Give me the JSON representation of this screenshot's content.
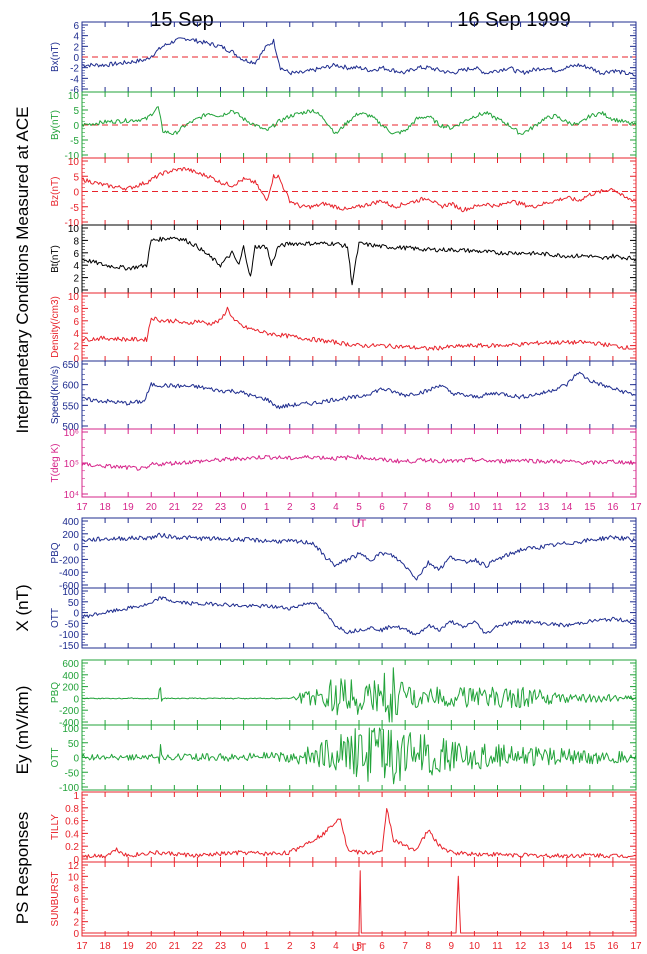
{
  "header": {
    "date_left": "15 Sep",
    "date_right": "16 Sep 1999"
  },
  "groups": {
    "ace": "Interplanetary Conditions Measured at ACE",
    "x": "X (nT)",
    "ey": "Ey (mV/km)",
    "ps": "PS Responses"
  },
  "colors": {
    "blue": "#1f2d8f",
    "green": "#22a33a",
    "red": "#e8232b",
    "black": "#000000",
    "magenta": "#d6248a"
  },
  "chart_data": [
    {
      "type": "line",
      "id": "bx",
      "ylabel": "Bx(nT)",
      "ylim": [
        -6,
        6
      ],
      "yticks": [
        -6,
        -4,
        -2,
        0,
        2,
        4,
        6
      ],
      "color": "blue",
      "zero_line": true,
      "x": [
        17,
        18,
        19,
        19.8,
        20.5,
        21,
        21.5,
        22,
        22.5,
        23,
        23.5,
        24,
        24.5,
        25,
        25.3,
        25.6,
        26,
        26.5,
        27,
        27.5,
        28,
        28.5,
        29,
        29.5,
        30,
        30.5,
        31,
        31.5,
        32,
        32.5,
        33,
        33.5,
        34,
        34.5,
        35,
        35.5,
        36,
        36.5,
        37,
        37.5,
        38,
        38.5,
        39,
        39.5,
        40,
        40.5,
        41
      ],
      "values": [
        -1.5,
        -1.5,
        -1,
        -0.5,
        2,
        3,
        3.5,
        3,
        2.5,
        2,
        1,
        -0.5,
        -1,
        2,
        3,
        -2,
        -3,
        -3,
        -2.5,
        -2,
        -1.5,
        -2,
        -2,
        -2.5,
        -2,
        -2.5,
        -3,
        -2,
        -2,
        -2.5,
        -3,
        -2.5,
        -2,
        -3,
        -2.5,
        -2,
        -3,
        -2.5,
        -2,
        -2.5,
        -2,
        -1.5,
        -2,
        -3,
        -2.5,
        -3,
        -3.5
      ]
    },
    {
      "type": "line",
      "id": "by",
      "ylabel": "By(nT)",
      "ylim": [
        -10,
        10
      ],
      "yticks": [
        -10,
        -5,
        0,
        5,
        10
      ],
      "color": "green",
      "zero_line": true,
      "x": [
        17,
        18,
        19,
        19.8,
        20.3,
        20.5,
        21,
        21.5,
        22,
        22.5,
        23,
        23.5,
        24,
        24.5,
        25,
        25.5,
        26,
        26.5,
        27,
        27.5,
        28,
        28.5,
        29,
        29.5,
        30,
        30.5,
        31,
        31.5,
        32,
        32.5,
        33,
        33.5,
        34,
        34.5,
        35,
        35.5,
        36,
        36.5,
        37,
        37.5,
        38,
        38.5,
        39,
        39.5,
        40,
        40.5,
        41
      ],
      "values": [
        0,
        1,
        1.5,
        2,
        6,
        -2,
        -3,
        0,
        2,
        4,
        3,
        5,
        2,
        0,
        -2,
        1,
        3,
        4,
        5,
        2,
        -3,
        1,
        4,
        3,
        0,
        -3,
        -2,
        2,
        3,
        0,
        -1,
        1,
        3,
        4,
        2,
        0,
        -3,
        -1,
        2,
        3,
        1,
        0,
        3,
        4,
        2,
        1,
        0
      ]
    },
    {
      "type": "line",
      "id": "bz",
      "ylabel": "Bz(nT)",
      "ylim": [
        -10,
        10
      ],
      "yticks": [
        -10,
        -5,
        0,
        5,
        10
      ],
      "color": "red",
      "zero_line": true,
      "x": [
        17,
        18,
        19,
        19.8,
        20.5,
        21,
        21.5,
        22,
        22.5,
        23,
        23.5,
        24,
        24.5,
        25,
        25.3,
        25.5,
        26,
        26.5,
        27,
        27.5,
        28,
        28.5,
        29,
        29.5,
        30,
        30.5,
        31,
        31.5,
        32,
        32.5,
        33,
        33.5,
        34,
        34.5,
        35,
        35.5,
        36,
        36.5,
        37,
        37.5,
        38,
        38.5,
        39,
        39.5,
        40,
        40.5,
        41
      ],
      "values": [
        4,
        2,
        1,
        3,
        6,
        7,
        7.5,
        6,
        5,
        3,
        2,
        4,
        3,
        -3,
        5,
        5,
        -3,
        -5,
        -5,
        -4,
        -5,
        -6,
        -5,
        -4,
        -3,
        -5,
        -4,
        -3,
        -2,
        -5,
        -4,
        -6,
        -5,
        -4,
        -5,
        -3,
        -4,
        -5,
        -4,
        -3,
        -2,
        -3,
        -1,
        0,
        1,
        -2,
        -3
      ]
    },
    {
      "type": "line",
      "id": "bt",
      "ylabel": "Bt(nT)",
      "ylim": [
        0,
        10
      ],
      "yticks": [
        0,
        2,
        4,
        6,
        8,
        10
      ],
      "color": "black",
      "x": [
        17,
        18,
        19,
        19.8,
        20,
        21,
        21.5,
        22,
        22.5,
        23,
        23.5,
        23.8,
        24,
        24.3,
        24.5,
        25,
        25.2,
        25.5,
        26,
        26.5,
        27,
        27.5,
        28,
        28.5,
        28.7,
        29,
        30,
        31,
        32,
        33,
        34,
        35,
        36,
        37,
        38,
        39,
        39.5,
        40,
        41
      ],
      "values": [
        5,
        4,
        3.5,
        4,
        8,
        8.5,
        8,
        7,
        5.5,
        4,
        6,
        4,
        7,
        2,
        7,
        7,
        4,
        7,
        7.5,
        7.5,
        7.5,
        7.5,
        7.5,
        7,
        1,
        7.5,
        7,
        6.8,
        6.5,
        6.5,
        6.3,
        6,
        6,
        5.8,
        5.5,
        5.5,
        5,
        5.5,
        5
      ]
    },
    {
      "type": "line",
      "id": "density",
      "ylabel": "Density(/cm3)",
      "ylim": [
        0,
        10
      ],
      "yticks": [
        0,
        2,
        4,
        6,
        8,
        10
      ],
      "color": "red",
      "x": [
        17,
        18,
        19,
        19.8,
        20,
        20.5,
        21,
        21.5,
        22,
        22.5,
        23,
        23.3,
        23.6,
        24,
        24.5,
        25,
        26,
        27,
        28,
        29,
        30,
        31,
        32,
        33,
        34,
        35,
        36,
        37,
        38,
        39,
        40,
        41
      ],
      "values": [
        3,
        3.2,
        3,
        3,
        6.5,
        6,
        6,
        5.5,
        6,
        5.5,
        6,
        8,
        6,
        5,
        4.5,
        4,
        3.5,
        3,
        2.5,
        2,
        2,
        1.8,
        1.5,
        1.8,
        2,
        2,
        2.2,
        2.5,
        2.5,
        2.5,
        2,
        1.5
      ]
    },
    {
      "type": "line",
      "id": "speed",
      "ylabel": "Speed(Km/s)",
      "ylim": [
        500,
        650
      ],
      "yticks": [
        500,
        550,
        600,
        650
      ],
      "color": "blue",
      "x": [
        17,
        18,
        19,
        19.7,
        20,
        21,
        22,
        22.5,
        23,
        23.5,
        24,
        24.5,
        25,
        25.5,
        26,
        27,
        28,
        29,
        29.5,
        30,
        31,
        32,
        32.5,
        33,
        34,
        35,
        36,
        37,
        38,
        38.5,
        39,
        39.5,
        40,
        41
      ],
      "values": [
        565,
        560,
        555,
        560,
        600,
        597,
        595,
        590,
        585,
        585,
        580,
        570,
        565,
        545,
        550,
        555,
        565,
        570,
        580,
        590,
        575,
        585,
        600,
        580,
        570,
        580,
        570,
        580,
        600,
        630,
        610,
        600,
        590,
        575
      ]
    },
    {
      "type": "line",
      "id": "temp",
      "ylabel": "T(deg K)",
      "ylim_log10": [
        4,
        6
      ],
      "yticks": [
        "10⁴",
        "10⁵",
        "10⁶"
      ],
      "color": "magenta",
      "x": [
        17,
        18,
        19,
        19.8,
        20,
        21,
        22,
        23,
        24,
        25,
        26,
        27,
        28,
        29,
        30,
        31,
        32,
        33,
        34,
        35,
        36,
        37,
        38,
        39,
        40,
        41
      ],
      "log10_values": [
        4.95,
        4.9,
        4.85,
        4.8,
        4.95,
        5,
        5.05,
        5.1,
        5.15,
        5.2,
        5.15,
        5.2,
        5.15,
        5.2,
        5.1,
        5.05,
        5.1,
        5.05,
        5.1,
        5.05,
        5.1,
        5.05,
        5.05,
        5,
        5.05,
        5
      ]
    },
    {
      "type": "line",
      "id": "pbq_x",
      "ylabel": "PBQ",
      "ylim": [
        -600,
        400
      ],
      "yticks": [
        -600,
        -400,
        -200,
        0,
        200,
        400
      ],
      "color": "blue",
      "x": [
        17,
        18,
        19,
        20,
        20.4,
        21,
        22,
        23,
        24,
        25,
        26,
        27,
        27.5,
        28,
        28.5,
        29,
        29.5,
        30,
        30.5,
        31,
        31.5,
        32,
        32.5,
        33,
        33.5,
        34,
        34.5,
        35,
        36,
        37,
        38,
        39,
        40,
        41
      ],
      "values": [
        100,
        120,
        130,
        140,
        180,
        150,
        130,
        120,
        110,
        90,
        80,
        60,
        -150,
        -300,
        -200,
        -120,
        -200,
        -100,
        -150,
        -300,
        -500,
        -250,
        -350,
        -150,
        -250,
        -200,
        -300,
        -200,
        -50,
        0,
        50,
        100,
        150,
        100
      ]
    },
    {
      "type": "line",
      "id": "ott_x",
      "ylabel": "OTT",
      "ylim": [
        -150,
        100
      ],
      "yticks": [
        -150,
        -100,
        -50,
        0,
        50,
        100
      ],
      "color": "blue",
      "x": [
        17,
        18,
        19,
        20,
        20.4,
        21,
        22,
        23,
        24,
        25,
        26,
        27,
        27.5,
        28,
        28.5,
        29,
        29.5,
        30,
        30.5,
        31,
        31.5,
        32,
        32.5,
        33,
        33.5,
        34,
        34.5,
        35,
        36,
        37,
        38,
        39,
        40,
        41
      ],
      "values": [
        -20,
        0,
        20,
        40,
        70,
        50,
        40,
        40,
        30,
        30,
        20,
        50,
        0,
        -60,
        -90,
        -80,
        -70,
        -80,
        -60,
        -80,
        -100,
        -60,
        -80,
        -40,
        -70,
        -40,
        -100,
        -60,
        -40,
        -50,
        -60,
        -40,
        -30,
        -40
      ]
    },
    {
      "type": "line",
      "id": "pbq_ey",
      "ylabel": "PBQ",
      "ylim": [
        -400,
        600
      ],
      "yticks": [
        -400,
        -200,
        0,
        200,
        400,
        600
      ],
      "color": "green",
      "noise": true,
      "x": [
        17,
        20.3,
        20.4,
        20.5,
        26,
        27,
        28,
        30,
        30.2,
        31,
        33,
        36,
        38,
        41
      ],
      "values": [
        0,
        0,
        150,
        0,
        0,
        100,
        200,
        150,
        450,
        100,
        100,
        100,
        50,
        20
      ]
    },
    {
      "type": "line",
      "id": "ott_ey",
      "ylabel": "OTT",
      "ylim": [
        -100,
        100
      ],
      "yticks": [
        -100,
        -50,
        0,
        50,
        100
      ],
      "color": "green",
      "noise": true,
      "x": [
        17,
        20.3,
        20.4,
        20.5,
        26,
        27,
        28,
        29,
        30,
        31,
        32,
        33,
        34,
        36,
        38,
        41
      ],
      "values": [
        5,
        5,
        -40,
        5,
        10,
        20,
        40,
        60,
        70,
        50,
        40,
        30,
        25,
        20,
        15,
        10
      ]
    },
    {
      "type": "line",
      "id": "tilly",
      "ylabel": "TILLY",
      "ylim": [
        0,
        1
      ],
      "yticks": [
        0,
        0.2,
        0.4,
        0.6,
        0.8,
        1.0
      ],
      "color": "red",
      "x": [
        17,
        18,
        18.5,
        19,
        20,
        21,
        22,
        23,
        24,
        25,
        26,
        26.5,
        27,
        27.5,
        28,
        28.2,
        28.5,
        29,
        30,
        30.2,
        30.5,
        31,
        31.5,
        32,
        32.5,
        33,
        34,
        35,
        36,
        37,
        38,
        39,
        40,
        41
      ],
      "values": [
        0.05,
        0.05,
        0.15,
        0.05,
        0.1,
        0.08,
        0.05,
        0.08,
        0.1,
        0.08,
        0.1,
        0.2,
        0.3,
        0.4,
        0.6,
        0.65,
        0.15,
        0.1,
        0.1,
        0.8,
        0.3,
        0.2,
        0.15,
        0.45,
        0.2,
        0.1,
        0.08,
        0.07,
        0.06,
        0.05,
        0.05,
        0.06,
        0.05,
        0.05
      ]
    },
    {
      "type": "line",
      "id": "sunburst",
      "ylabel": "SUNBURST",
      "ylim": [
        0,
        12
      ],
      "yticks": [
        0,
        2,
        4,
        6,
        8,
        10,
        12
      ],
      "color": "red",
      "x": [
        17,
        29,
        29.05,
        29.1,
        33.2,
        33.3,
        33.4,
        41
      ],
      "values": [
        0,
        0,
        11,
        0,
        0,
        10,
        0,
        0
      ]
    }
  ],
  "x_axis": {
    "ticks": [
      "17",
      "18",
      "19",
      "20",
      "21",
      "22",
      "23",
      "0",
      "1",
      "2",
      "3",
      "4",
      "5",
      "6",
      "7",
      "8",
      "9",
      "10",
      "11",
      "12",
      "13",
      "14",
      "15",
      "16",
      "17"
    ],
    "label": "UT"
  }
}
